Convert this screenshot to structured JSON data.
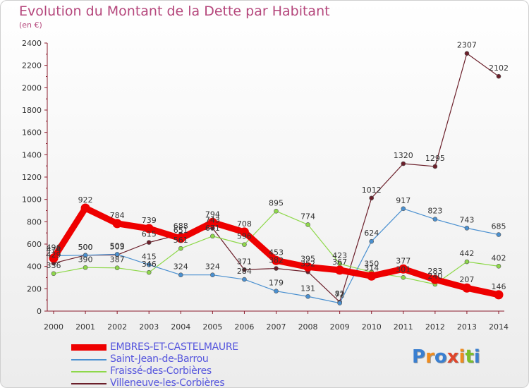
{
  "title": "Evolution du Montant de la Dette par Habitant",
  "subtitle": "(en €)",
  "logo": {
    "text": "Proxiti",
    "letter_colors": [
      "#3a7fd0",
      "#f08c1e",
      "#3a7fd0",
      "#e0452a",
      "#f08c1e",
      "#7bbf2a",
      "#3a7fd0"
    ]
  },
  "chart_data": {
    "type": "line",
    "title": "Evolution du Montant de la Dette par Habitant",
    "subtitle": "(en €)",
    "x": [
      "2000",
      "2001",
      "2002",
      "2003",
      "2004",
      "2005",
      "2006",
      "2007",
      "2008",
      "2009",
      "2010",
      "2011",
      "2012",
      "2013",
      "2014"
    ],
    "ylim": [
      0,
      2400
    ],
    "yticks": [
      0,
      200,
      400,
      600,
      800,
      1000,
      1200,
      1400,
      1600,
      1800,
      2000,
      2200,
      2400
    ],
    "grid": false,
    "legend_position": "bottom-left",
    "series": [
      {
        "name": "EMBRES-ET-CASTELMAURE",
        "color": "#ee0000",
        "values": [
          474,
          922,
          784,
          739,
          651,
          794,
          708,
          453,
          395,
          367,
          314,
          377,
          283,
          207,
          146
        ]
      },
      {
        "name": "Saint-Jean-de-Barrou",
        "color": "#4a90d0",
        "values": [
          496,
          500,
          509,
          415,
          324,
          324,
          284,
          179,
          131,
          72,
          624,
          917,
          823,
          743,
          685
        ]
      },
      {
        "name": "Fraissé-des-Corbières",
        "color": "#8ed84a",
        "values": [
          336,
          390,
          387,
          346,
          561,
          671,
          596,
          895,
          774,
          423,
          350,
          301,
          240,
          442,
          402
        ]
      },
      {
        "name": "Villeneuve-les-Corbières",
        "color": "#6b1f2a",
        "values": [
          429,
          500,
          503,
          615,
          688,
          743,
          371,
          382,
          352,
          82,
          1012,
          1320,
          1295,
          2307,
          2102
        ]
      }
    ]
  }
}
